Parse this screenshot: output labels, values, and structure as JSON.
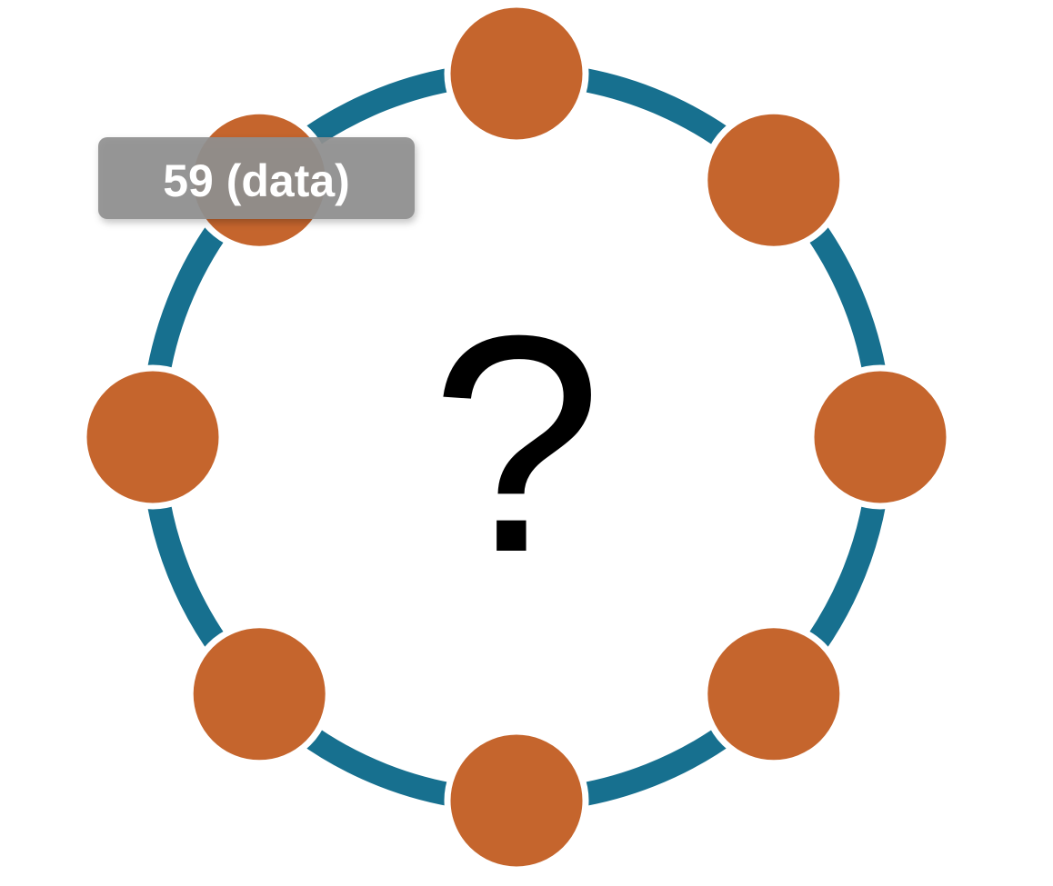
{
  "diagram": {
    "center_label": "?",
    "tooltip_label": "59 (data)",
    "node_count": 8,
    "colors": {
      "ring": "#17708f",
      "node": "#c5652d",
      "tooltip": "#8f8f8f",
      "tooltip_text": "#ffffff",
      "center_label": "#000000"
    }
  }
}
